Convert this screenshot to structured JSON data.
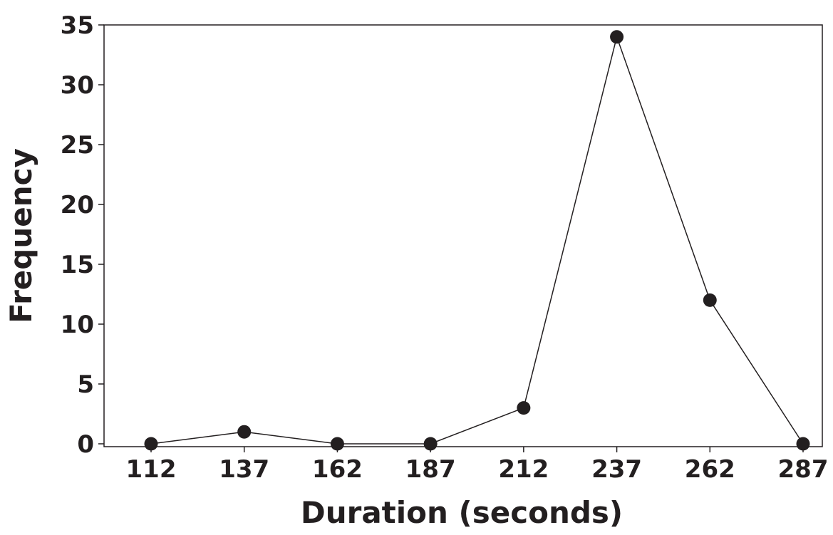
{
  "chart_data": {
    "type": "line",
    "title": "",
    "xlabel": "Duration (seconds)",
    "ylabel": "Frequency",
    "x": [
      112,
      137,
      162,
      187,
      212,
      237,
      262,
      287
    ],
    "series": [
      {
        "values": [
          0,
          1,
          0,
          0,
          3,
          34,
          12,
          0
        ]
      }
    ],
    "xticks": [
      "112",
      "137",
      "162",
      "187",
      "212",
      "237",
      "262",
      "287"
    ],
    "yticks": [
      "0",
      "5",
      "10",
      "15",
      "20",
      "25",
      "30",
      "35"
    ],
    "ylim": [
      0,
      35
    ],
    "grid": false,
    "colors": {
      "line": "#231f20",
      "marker": "#231f20",
      "frame": "#231f20"
    }
  }
}
